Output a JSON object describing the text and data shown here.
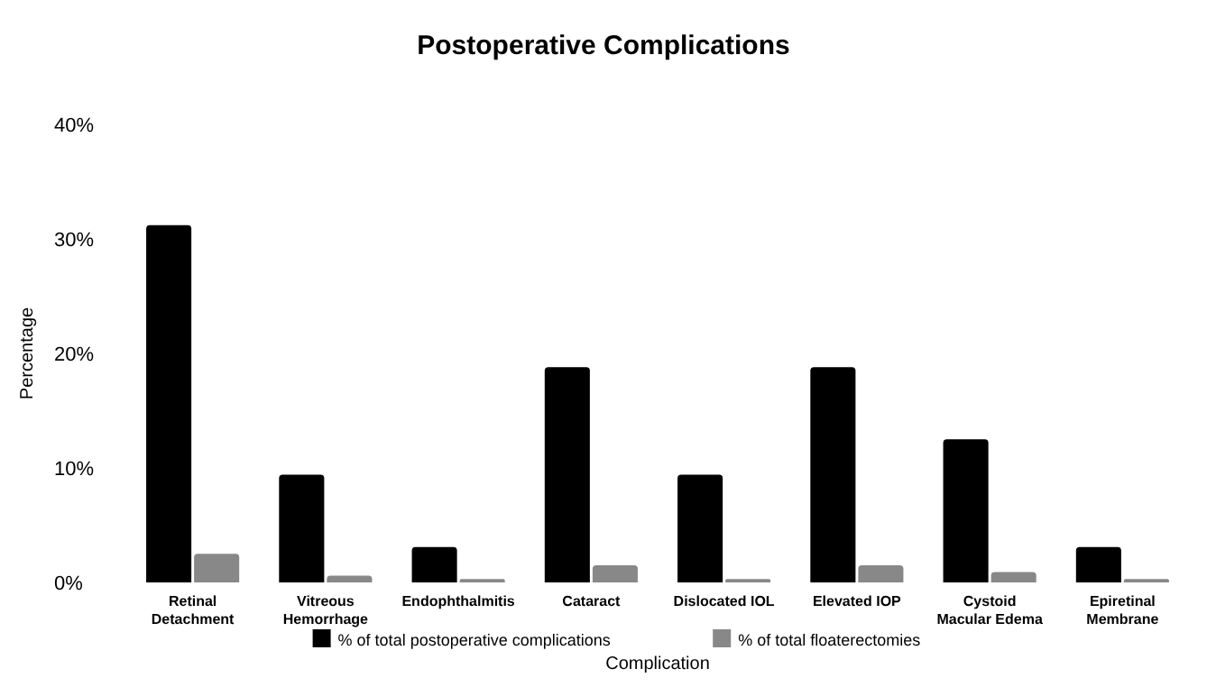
{
  "chart_data": {
    "type": "bar",
    "title": "Postoperative Complications",
    "xlabel": "Complication",
    "ylabel": "Percentage",
    "categories": [
      "Retinal Detachment",
      "Vitreous Hemorrhage",
      "Endophthalmitis",
      "Cataract",
      "Dislocated IOL",
      "Elevated IOP",
      "Cystoid Macular Edema",
      "Epiretinal Membrane"
    ],
    "series": [
      {
        "name": "% of total postoperative complications",
        "color": "#000000",
        "values": [
          31.2,
          9.4,
          3.1,
          18.8,
          9.4,
          18.8,
          12.5,
          3.1
        ]
      },
      {
        "name": "% of total floaterectomies",
        "color": "#888888",
        "values": [
          2.5,
          0.6,
          0.3,
          1.5,
          0.3,
          1.5,
          0.9,
          0.3
        ]
      }
    ],
    "ylim": [
      0,
      40
    ],
    "yticks": [
      {
        "value": 0,
        "label": "0%"
      },
      {
        "value": 10,
        "label": "10%"
      },
      {
        "value": 20,
        "label": "20%"
      },
      {
        "value": 30,
        "label": "30%"
      },
      {
        "value": 40,
        "label": "40%"
      }
    ],
    "grid": false,
    "legend": "bottom"
  }
}
